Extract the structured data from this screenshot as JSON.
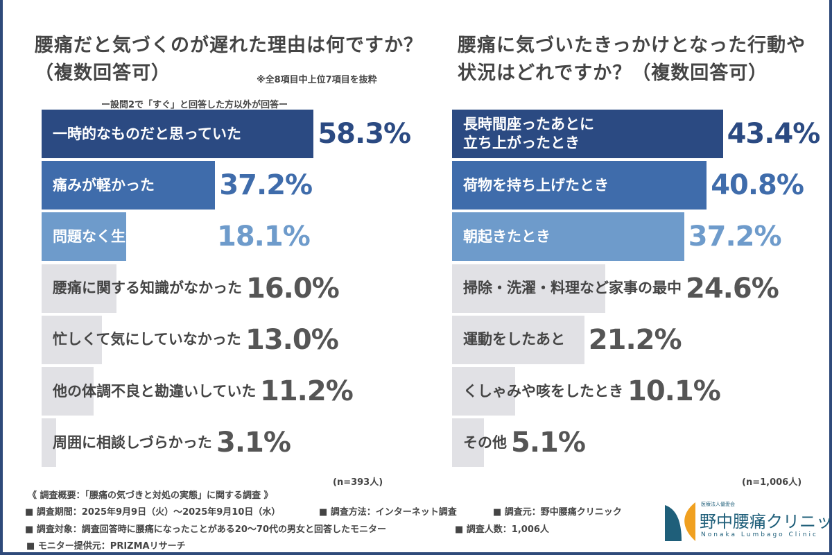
{
  "chart_data": [
    {
      "type": "bar",
      "orientation": "horizontal",
      "title": "腰痛だと気づくのが遅れた理由は何ですか？（複数回答可）",
      "note": "※全8項目中上位7項目を抜粋",
      "subtitle": "ー設問2で「すぐ」と回答した方以外が回答ー",
      "categories": [
        "一時的なものだと思っていた",
        "痛みが軽かった",
        "問題なく生活できていた",
        "腰痛に関する知識がなかった",
        "忙しくて気にしていなかった",
        "他の体調不良と勘違いしていた",
        "周囲に相談しづらかった"
      ],
      "values": [
        58.3,
        37.2,
        18.1,
        16.0,
        13.0,
        11.2,
        3.1
      ],
      "value_labels": [
        "58.3%",
        "37.2%",
        "18.1%",
        "16.0%",
        "13.0%",
        "11.2%",
        "3.1%"
      ],
      "colors": [
        "#2b4a82",
        "#3f6cab",
        "#6e9bcb",
        "#e1e1e5",
        "#e1e1e5",
        "#e1e1e5",
        "#e1e1e5"
      ],
      "n": "(n=393人)"
    },
    {
      "type": "bar",
      "orientation": "horizontal",
      "title": "腰痛に気づいたきっかけとなった行動や状況はどれですか？（複数回答可）",
      "categories": [
        "長時間座ったあとに\n立ち上がったとき",
        "荷物を持ち上げたとき",
        "朝起きたとき",
        "掃除・洗濯・料理など家事の最中",
        "運動をしたあと",
        "くしゃみや咳をしたとき",
        "その他"
      ],
      "values": [
        43.4,
        40.8,
        37.2,
        24.6,
        21.2,
        10.1,
        5.1
      ],
      "value_labels": [
        "43.4%",
        "40.8%",
        "37.2%",
        "24.6%",
        "21.2%",
        "10.1%",
        "5.1%"
      ],
      "colors": [
        "#2b4a82",
        "#3f6cab",
        "#6e9bcb",
        "#e1e1e5",
        "#e1e1e5",
        "#e1e1e5",
        "#e1e1e5"
      ],
      "n": "(n=1,006人)"
    }
  ],
  "titles": {
    "left_line1": "腰痛だと気づくのが遅れた理由は何ですか？",
    "left_line2": "（複数回答可）",
    "right_line1": "腰痛に気づいたきっかけとなった行動や",
    "right_line2": "状況はどれですか？（複数回答可）"
  },
  "footer": {
    "heading": "《 調査概要：「腰痛の気づきと対処の実態」に関する調査 》",
    "period": "■ 調査期間：2025年9月9日（火）～2025年9月10日（水）",
    "method": "■ 調査方法：インターネット調査",
    "source": "■ 調査元：野中腰痛クリニック",
    "target": "■ 調査対象：調査回答時に腰痛になったことがある20～70代の男女と回答したモニター",
    "count": "■ 調査人数：1,006人",
    "provider": "■ モニター提供元：PRIZMAリサーチ"
  },
  "logo": {
    "name": "野中腰痛クリニック",
    "en": "Nonaka Lumbago Clinic",
    "small": "医療法人優愛会",
    "colors": [
      "#1f5f7a",
      "#f0a020"
    ]
  }
}
